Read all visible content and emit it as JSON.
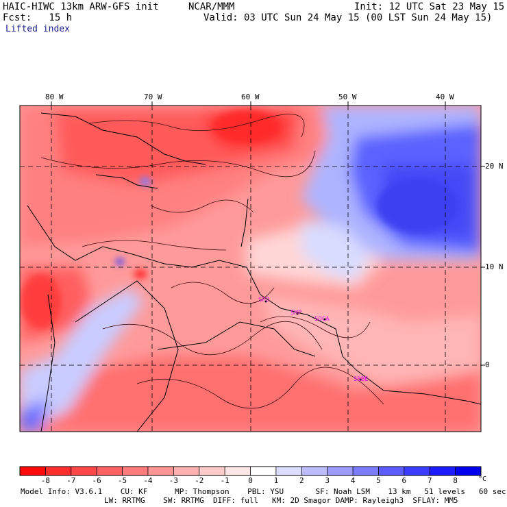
{
  "header": {
    "model": "HAIC-HIWC 13km ARW-GFS init",
    "org": "NCAR/MMM",
    "init": "Init: 12 UTC Sat 23 May 15",
    "forecast": "Fcst:   15 h",
    "valid": "Valid: 03 UTC Sun 24 May 15 (00 LST Sun 24 May 15)",
    "field": "Lifted index"
  },
  "axes": {
    "lon_labels": [
      "80 W",
      "70 W",
      "60 W",
      "50 W",
      "40 W"
    ],
    "lat_labels": [
      "20 N",
      "10 N",
      "0"
    ]
  },
  "stations": [
    "SPD",
    "SMP",
    "SOCA",
    "SBBE"
  ],
  "colorbar": {
    "unit": "°C",
    "ticks": [
      "-8",
      "-7",
      "-6",
      "-5",
      "-4",
      "-3",
      "-2",
      "-1",
      "0",
      "1",
      "2",
      "3",
      "4",
      "5",
      "6",
      "7",
      "8"
    ],
    "colors": [
      "#ff0a0a",
      "#ff2e2e",
      "#ff4848",
      "#ff6262",
      "#ff7c7c",
      "#ff9696",
      "#ffb0b0",
      "#ffcaca",
      "#ffe6e6",
      "#ffffff",
      "#dcdcff",
      "#bcbcff",
      "#9c9cff",
      "#7c7cff",
      "#5c5cff",
      "#3c3cff",
      "#1c1cff",
      "#0000ee"
    ]
  },
  "model_info": {
    "line1": "Model Info: V3.6.1    CU: KF      MP: Thompson    PBL: YSU       SF: Noah LSM    13 km   51 levels   60 sec",
    "line2": "LW: RRTMG    SW: RRTMG  DIFF: full   KM: 2D Smagor DAMP: Rayleigh3  SFLAY: MM5"
  }
}
